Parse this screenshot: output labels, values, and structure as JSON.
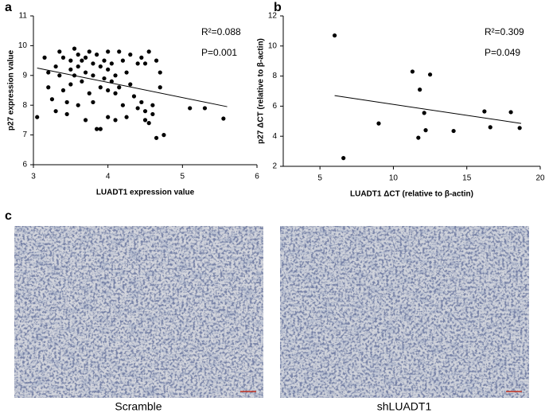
{
  "figure_labels": [
    "a",
    "b",
    "c"
  ],
  "chart_data": [
    {
      "type": "scatter",
      "x_label": "LUADT1 expression value",
      "y_label": "p27 expression value",
      "annotations": [
        "R²=0.088",
        "P=0.001"
      ],
      "color": "#000000",
      "xlim": [
        3,
        6
      ],
      "xticks": [
        3,
        4,
        5,
        6
      ],
      "ylim": [
        6,
        11
      ],
      "yticks": [
        6,
        7,
        8,
        9,
        10,
        11
      ],
      "x": [
        3.05,
        3.15,
        3.2,
        3.2,
        3.25,
        3.3,
        3.3,
        3.35,
        3.35,
        3.4,
        3.4,
        3.45,
        3.45,
        3.5,
        3.5,
        3.5,
        3.55,
        3.55,
        3.6,
        3.6,
        3.6,
        3.65,
        3.65,
        3.7,
        3.7,
        3.7,
        3.75,
        3.75,
        3.8,
        3.8,
        3.8,
        3.85,
        3.85,
        3.9,
        3.9,
        3.9,
        3.95,
        3.95,
        4.0,
        4.0,
        4.0,
        4.0,
        4.05,
        4.05,
        4.1,
        4.1,
        4.1,
        4.15,
        4.15,
        4.2,
        4.2,
        4.25,
        4.25,
        4.3,
        4.3,
        4.35,
        4.4,
        4.4,
        4.45,
        4.45,
        4.5,
        4.5,
        4.5,
        4.55,
        4.55,
        4.6,
        4.6,
        4.65,
        4.65,
        4.7,
        4.7,
        4.75,
        5.1,
        5.3,
        5.55
      ],
      "y": [
        7.6,
        9.6,
        9.1,
        8.6,
        8.2,
        9.3,
        7.8,
        9.8,
        9.0,
        8.5,
        9.6,
        8.1,
        7.7,
        9.5,
        9.2,
        8.7,
        9.9,
        9.0,
        9.7,
        9.3,
        8.0,
        9.5,
        8.8,
        9.6,
        9.1,
        7.5,
        9.8,
        8.4,
        9.4,
        9.0,
        8.1,
        7.2,
        9.7,
        9.3,
        8.6,
        7.2,
        9.5,
        8.9,
        9.8,
        9.2,
        8.5,
        7.6,
        9.4,
        8.8,
        9.0,
        8.4,
        7.5,
        9.8,
        8.6,
        9.5,
        8.0,
        9.1,
        7.6,
        9.7,
        8.7,
        8.3,
        9.4,
        7.9,
        9.6,
        8.1,
        7.5,
        9.4,
        7.8,
        7.4,
        9.8,
        8.0,
        7.7,
        9.5,
        6.9,
        8.6,
        9.1,
        7.0,
        7.9,
        7.9,
        7.55
      ],
      "trendline": {
        "x": [
          3.05,
          5.6
        ],
        "y": [
          9.25,
          7.95
        ]
      }
    },
    {
      "type": "scatter",
      "x_label": "LUADT1 ΔCT (relative to β-actin)",
      "y_label": "p27 ΔCT (relative to β-actin)",
      "annotations": [
        "R²=0.309",
        "P=0.049"
      ],
      "color": "#000000",
      "xlim": [
        2.5,
        20
      ],
      "xticks": [
        5,
        10,
        15,
        20
      ],
      "ylim": [
        2,
        12
      ],
      "yticks": [
        2,
        4,
        6,
        8,
        10,
        12
      ],
      "x": [
        6.0,
        6.6,
        9.0,
        11.3,
        11.7,
        11.8,
        12.1,
        12.2,
        12.5,
        14.1,
        16.2,
        16.6,
        18.0,
        18.6
      ],
      "y": [
        10.7,
        2.55,
        4.85,
        8.3,
        3.9,
        7.1,
        5.55,
        4.4,
        8.1,
        4.35,
        5.65,
        4.6,
        5.6,
        4.55
      ],
      "trendline": {
        "x": [
          6.0,
          18.7
        ],
        "y": [
          6.7,
          4.85
        ]
      }
    }
  ],
  "images": [
    {
      "caption": "Scramble"
    },
    {
      "caption": "shLUADT1"
    }
  ]
}
